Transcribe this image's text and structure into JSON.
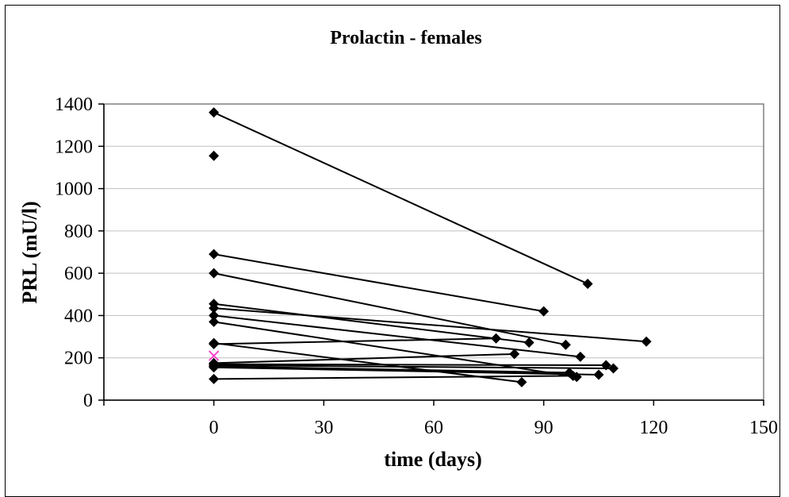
{
  "chart_data": {
    "type": "scatter",
    "title": "Prolactin - females",
    "xlabel": "time (days)",
    "ylabel": "PRL (mU/l)",
    "xlim": [
      -30,
      150
    ],
    "ylim": [
      0,
      1400
    ],
    "x_ticks": [
      0,
      30,
      60,
      90,
      120,
      150
    ],
    "y_ticks": [
      0,
      200,
      400,
      600,
      800,
      1000,
      1200,
      1400
    ],
    "grid": "horizontal",
    "legend": "none",
    "colors": {
      "series": "#000000",
      "marker": "#000000",
      "special_marker": "#ff44cc",
      "grid": "#c0c0c0"
    },
    "pairs": [
      {
        "x": [
          0,
          102
        ],
        "y": [
          1360,
          550
        ]
      },
      {
        "x": [
          0,
          90
        ],
        "y": [
          690,
          420
        ]
      },
      {
        "x": [
          0,
          96
        ],
        "y": [
          600,
          262
        ]
      },
      {
        "x": [
          0,
          86
        ],
        "y": [
          455,
          272
        ]
      },
      {
        "x": [
          0,
          118
        ],
        "y": [
          435,
          277
        ]
      },
      {
        "x": [
          0,
          100
        ],
        "y": [
          400,
          205
        ]
      },
      {
        "x": [
          0,
          99
        ],
        "y": [
          370,
          110
        ]
      },
      {
        "x": [
          0,
          77
        ],
        "y": [
          265,
          292
        ]
      },
      {
        "x": [
          0,
          84
        ],
        "y": [
          270,
          85
        ]
      },
      {
        "x": [
          0,
          82
        ],
        "y": [
          175,
          218
        ]
      },
      {
        "x": [
          0,
          107
        ],
        "y": [
          170,
          165
        ]
      },
      {
        "x": [
          0,
          109
        ],
        "y": [
          165,
          150
        ]
      },
      {
        "x": [
          0,
          97
        ],
        "y": [
          160,
          130
        ]
      },
      {
        "x": [
          0,
          105
        ],
        "y": [
          155,
          120
        ]
      },
      {
        "x": [
          0,
          98
        ],
        "y": [
          100,
          115
        ]
      }
    ],
    "singles": [
      {
        "x": 0,
        "y": 1155
      }
    ],
    "special": [
      {
        "x": 0,
        "y": 210,
        "marker": "x"
      }
    ]
  }
}
